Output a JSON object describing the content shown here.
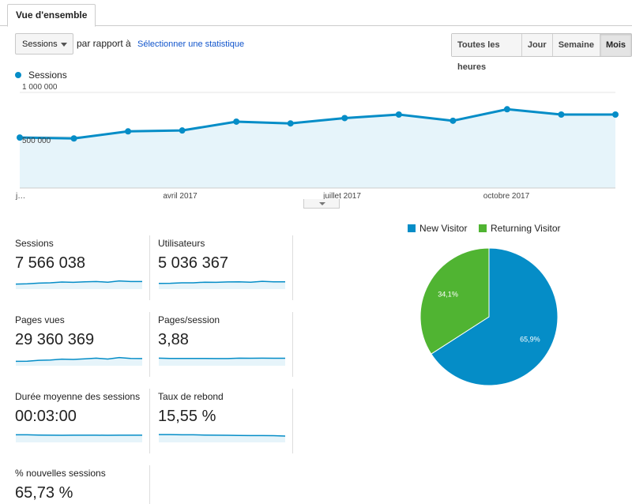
{
  "tabs": {
    "overview": "Vue d'ensemble"
  },
  "toolbar": {
    "metric_select": "Sessions",
    "compare_text": "par rapport à",
    "select_stat_link": "Sélectionner une statistique",
    "periods": [
      "Toutes les heures",
      "Jour",
      "Semaine",
      "Mois"
    ],
    "active_period": "Mois"
  },
  "chart_data": [
    {
      "type": "area",
      "legend": "Sessions",
      "color": "#058dc7",
      "fill": "#e6f4fa",
      "y_tick_labels": [
        "1 000 000",
        "500 000"
      ],
      "y_ticks": [
        1000000,
        500000
      ],
      "ylim": [
        0,
        1000000
      ],
      "x_tick_labels": [
        "j…",
        "avril 2017",
        "juillet 2017",
        "octobre 2017"
      ],
      "x": [
        "jan 2017",
        "fév 2017",
        "mars 2017",
        "avr 2017",
        "mai 2017",
        "juin 2017",
        "juil 2017",
        "août 2017",
        "sept 2017",
        "oct 2017",
        "nov 2017",
        "déc 2017"
      ],
      "values": [
        490000,
        480000,
        560000,
        570000,
        670000,
        650000,
        710000,
        750000,
        680000,
        810000,
        750000,
        750000
      ]
    },
    {
      "type": "pie",
      "categories": [
        "New Visitor",
        "Returning Visitor"
      ],
      "values": [
        65.9,
        34.1
      ],
      "labels": [
        "65,9%",
        "34,1%"
      ],
      "colors": [
        "#058dc7",
        "#50b432"
      ]
    }
  ],
  "metrics": [
    {
      "name": "Sessions",
      "value": "7 566 038",
      "spark": [
        0.4,
        0.42,
        0.48,
        0.5,
        0.56,
        0.54,
        0.58,
        0.6,
        0.55,
        0.65,
        0.6,
        0.6
      ]
    },
    {
      "name": "Utilisateurs",
      "value": "5 036 367",
      "spark": [
        0.45,
        0.46,
        0.5,
        0.5,
        0.55,
        0.54,
        0.57,
        0.58,
        0.55,
        0.62,
        0.58,
        0.58
      ]
    },
    {
      "name": "Pages vues",
      "value": "29 360 369",
      "spark": [
        0.35,
        0.36,
        0.43,
        0.45,
        0.52,
        0.5,
        0.55,
        0.6,
        0.53,
        0.65,
        0.58,
        0.57
      ]
    },
    {
      "name": "Pages/session",
      "value": "3,88",
      "spark": [
        0.6,
        0.58,
        0.58,
        0.58,
        0.58,
        0.57,
        0.57,
        0.6,
        0.59,
        0.6,
        0.59,
        0.59
      ]
    },
    {
      "name": "Durée moyenne des sessions",
      "value": "00:03:00",
      "spark": [
        0.6,
        0.6,
        0.58,
        0.57,
        0.56,
        0.57,
        0.57,
        0.57,
        0.56,
        0.57,
        0.57,
        0.57
      ]
    },
    {
      "name": "Taux de rebond",
      "value": "15,55 %",
      "spark": [
        0.62,
        0.62,
        0.6,
        0.6,
        0.58,
        0.57,
        0.56,
        0.55,
        0.54,
        0.54,
        0.53,
        0.5
      ]
    },
    {
      "name": "% nouvelles sessions",
      "value": "65,73 %",
      "spark": []
    }
  ]
}
